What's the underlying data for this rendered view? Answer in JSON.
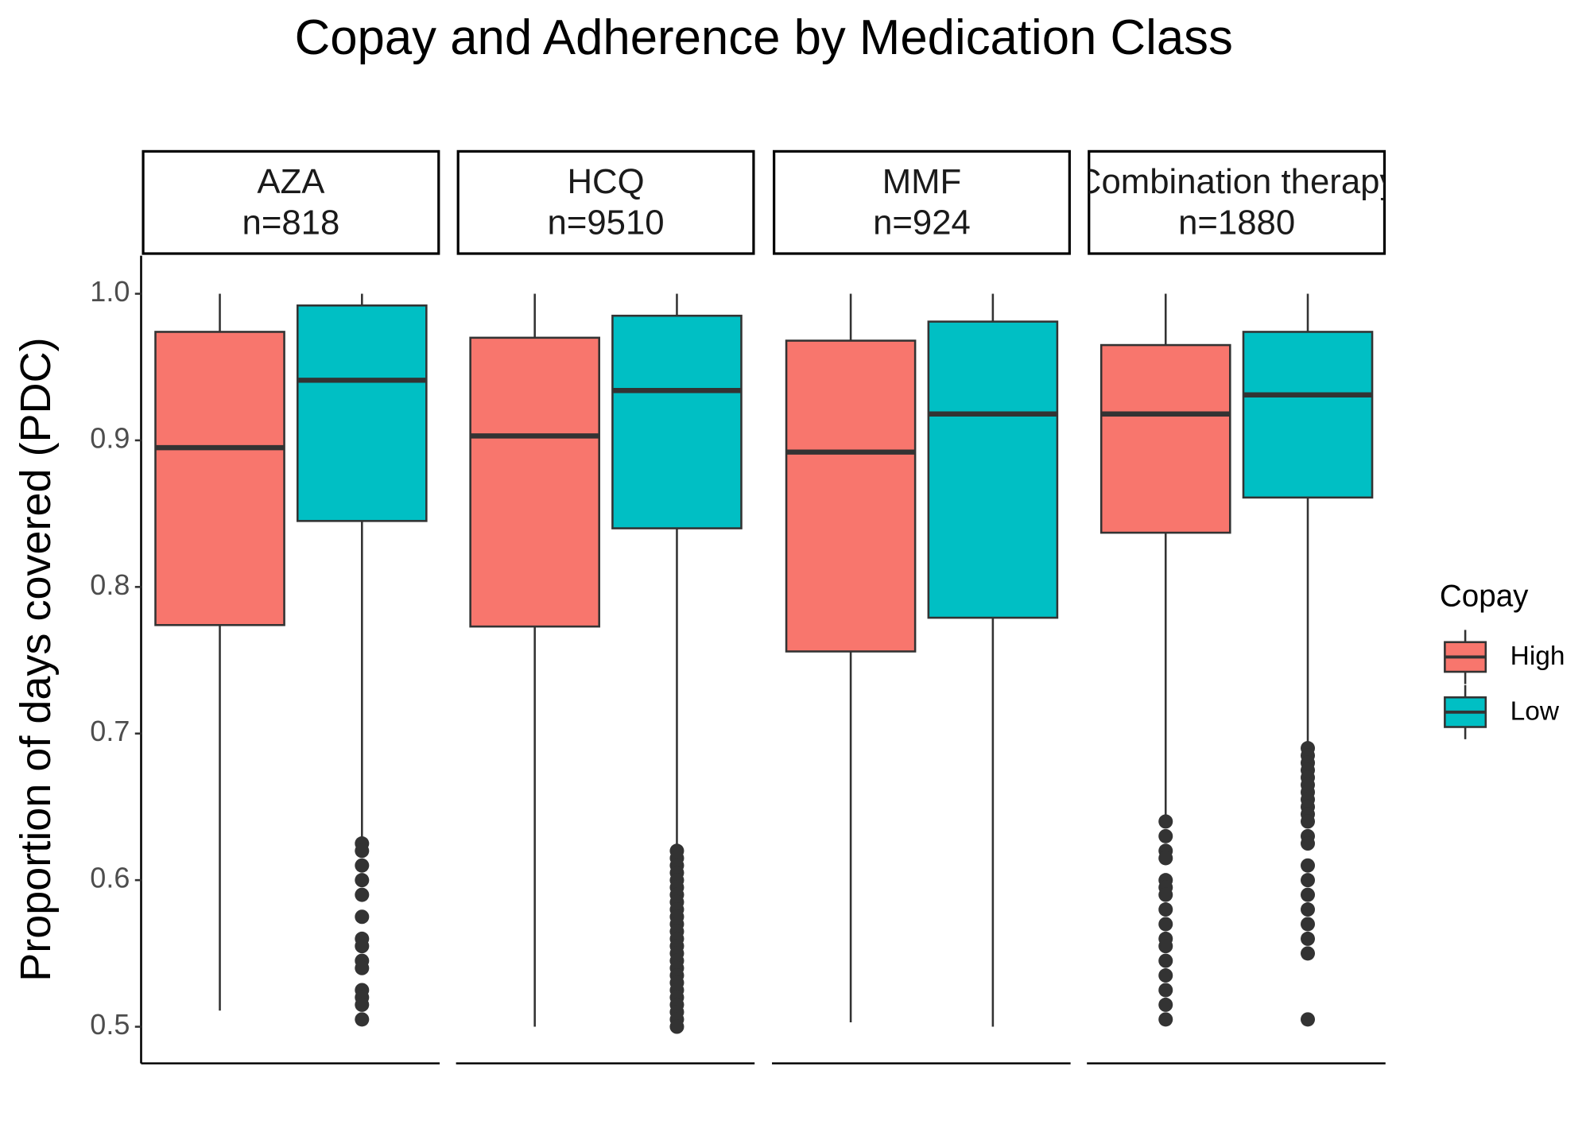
{
  "chart_data": {
    "type": "boxplot",
    "title": "Copay and Adherence by Medication Class",
    "y_label": "Proportion of days covered (PDC)",
    "legend_title": "Copay",
    "facets": [
      {
        "label": "AZA",
        "n": "n=818"
      },
      {
        "label": "HCQ",
        "n": "n=9510"
      },
      {
        "label": "MMF",
        "n": "n=924"
      },
      {
        "label": "Combination therapy",
        "n": "n=1880"
      }
    ],
    "ylim": [
      0.475,
      1.026
    ],
    "yticks": [
      {
        "value": 0.5,
        "label": "0.5"
      },
      0.6,
      0.7,
      0.8,
      0.9,
      {
        "value": 1,
        "label": "1.0"
      }
    ],
    "series": [
      {
        "name": "High",
        "color": "#F8766D",
        "boxes": [
          {
            "whislo": 0.511,
            "q1": 0.774,
            "med": 0.895,
            "q3": 0.974,
            "whishi": 1,
            "outliers": []
          },
          {
            "whislo": 0.5,
            "q1": 0.773,
            "med": 0.903,
            "q3": 0.97,
            "whishi": 1,
            "outliers": []
          },
          {
            "whislo": 0.503,
            "q1": 0.756,
            "med": 0.892,
            "q3": 0.968,
            "whishi": 1,
            "outliers": []
          },
          {
            "whislo": 0.642,
            "q1": 0.837,
            "med": 0.918,
            "q3": 0.965,
            "whishi": 1,
            "outliers": [
              0.64,
              0.63,
              0.62,
              0.615,
              0.6,
              0.595,
              0.59,
              0.58,
              0.57,
              0.56,
              0.555,
              0.545,
              0.535,
              0.525,
              0.515,
              0.505
            ]
          }
        ]
      },
      {
        "name": "Low",
        "color": "#00BFC4",
        "boxes": [
          {
            "whislo": 0.628,
            "q1": 0.845,
            "med": 0.941,
            "q3": 0.992,
            "whishi": 1,
            "outliers": [
              0.625,
              0.62,
              0.61,
              0.6,
              0.59,
              0.575,
              0.56,
              0.555,
              0.545,
              0.54,
              0.525,
              0.52,
              0.515,
              0.505
            ]
          },
          {
            "whislo": 0.624,
            "q1": 0.84,
            "med": 0.934,
            "q3": 0.985,
            "whishi": 1,
            "outliers": [
              0.62,
              0.615,
              0.61,
              0.605,
              0.6,
              0.595,
              0.59,
              0.585,
              0.58,
              0.575,
              0.57,
              0.565,
              0.56,
              0.555,
              0.55,
              0.545,
              0.54,
              0.535,
              0.53,
              0.525,
              0.52,
              0.515,
              0.51,
              0.505,
              0.5
            ]
          },
          {
            "whislo": 0.5,
            "q1": 0.779,
            "med": 0.918,
            "q3": 0.981,
            "whishi": 1,
            "outliers": []
          },
          {
            "whislo": 0.692,
            "q1": 0.861,
            "med": 0.931,
            "q3": 0.974,
            "whishi": 1,
            "outliers": [
              0.69,
              0.685,
              0.68,
              0.675,
              0.67,
              0.665,
              0.66,
              0.655,
              0.65,
              0.645,
              0.64,
              0.63,
              0.625,
              0.61,
              0.6,
              0.59,
              0.58,
              0.57,
              0.56,
              0.55,
              0.505
            ]
          }
        ]
      }
    ]
  }
}
